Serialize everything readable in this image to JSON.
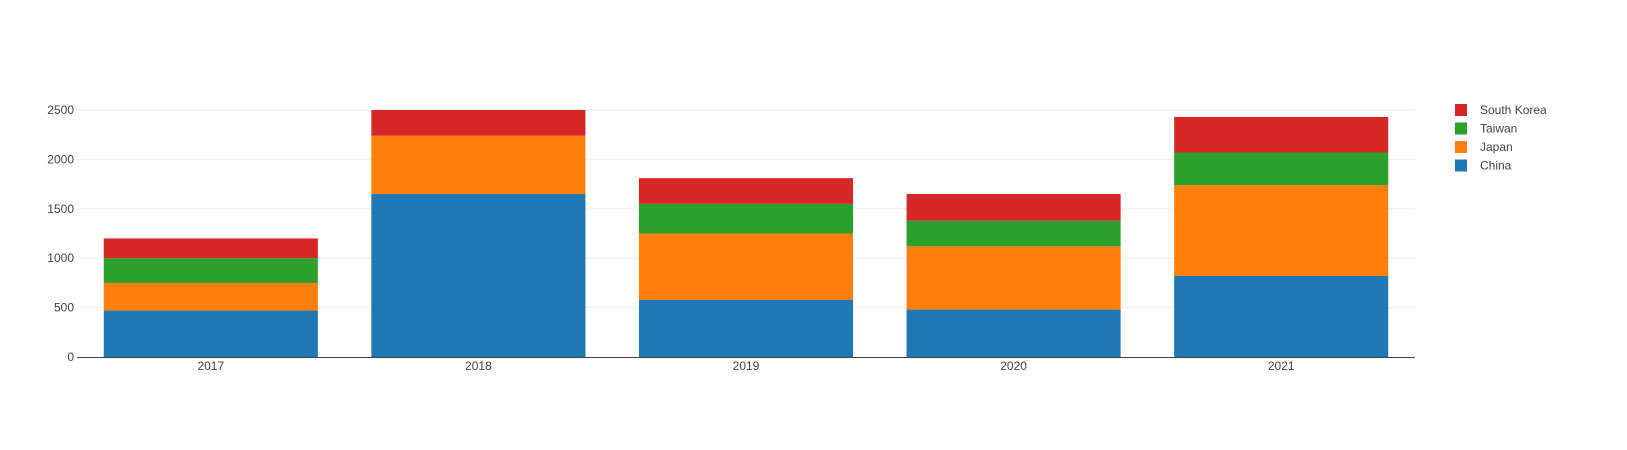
{
  "chart_data": {
    "type": "bar",
    "stacked": true,
    "categories": [
      "2017",
      "2018",
      "2019",
      "2020",
      "2021"
    ],
    "series": [
      {
        "name": "China",
        "color": "#1f77b4",
        "values": [
          470,
          1650,
          580,
          480,
          820
        ]
      },
      {
        "name": "Japan",
        "color": "#ff7f0e",
        "values": [
          280,
          590,
          670,
          640,
          920
        ]
      },
      {
        "name": "Taiwan",
        "color": "#2ca02c",
        "values": [
          250,
          0,
          300,
          260,
          330
        ]
      },
      {
        "name": "South Korea",
        "color": "#d62728",
        "values": [
          200,
          260,
          260,
          270,
          360
        ]
      }
    ],
    "ylim": [
      0,
      2500
    ],
    "yticks": [
      0,
      500,
      1000,
      1500,
      2000,
      2500
    ],
    "title": "",
    "xlabel": "",
    "ylabel": "",
    "grid": true,
    "legend_position": "top-right",
    "legend_order": [
      "South Korea",
      "Taiwan",
      "Japan",
      "China"
    ]
  }
}
